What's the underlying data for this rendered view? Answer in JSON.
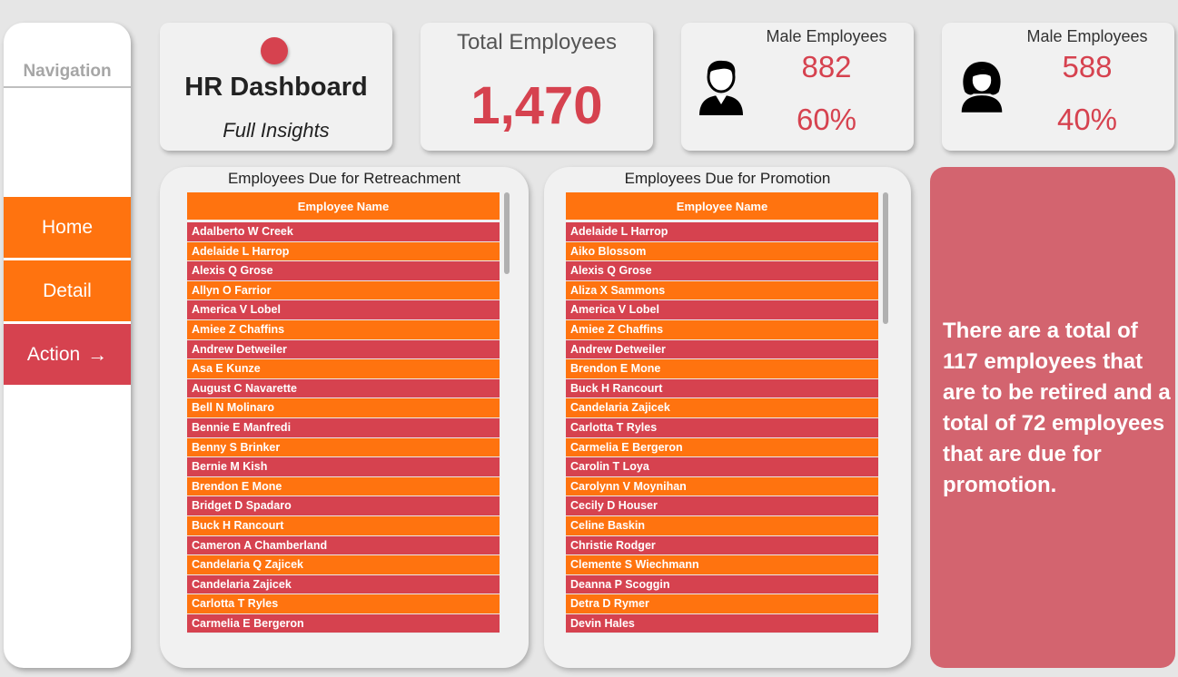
{
  "navigation": {
    "title": "Navigation",
    "items": [
      {
        "label": "Home",
        "arrow": ""
      },
      {
        "label": "Detail",
        "arrow": ""
      },
      {
        "label": "Action",
        "arrow": "→"
      }
    ]
  },
  "header": {
    "title": "HR Dashboard",
    "subtitle": "Full Insights"
  },
  "kpi_total": {
    "label": "Total Employees",
    "value": "1,470"
  },
  "kpi_male": {
    "label": "Male Employees",
    "count": "882",
    "percent": "60%"
  },
  "kpi_female": {
    "label": "Male Employees",
    "count": "588",
    "percent": "40%"
  },
  "retrenchment": {
    "title": "Employees Due for Retreachment",
    "column": "Employee Name",
    "rows": [
      "Adalberto W Creek",
      "Adelaide L Harrop",
      "Alexis Q Grose",
      "Allyn O Farrior",
      "America V Lobel",
      "Amiee Z Chaffins",
      "Andrew Detweiler",
      "Asa E Kunze",
      "August C Navarette",
      "Bell N Molinaro",
      "Bennie E Manfredi",
      "Benny S Brinker",
      "Bernie M Kish",
      "Brendon E Mone",
      "Bridget D Spadaro",
      "Buck H Rancourt",
      "Cameron A Chamberland",
      "Candelaria Q Zajicek",
      "Candelaria Zajicek",
      "Carlotta T Ryles",
      "Carmelia E Bergeron"
    ]
  },
  "promotion": {
    "title": "Employees Due for Promotion",
    "column": "Employee Name",
    "rows": [
      "Adelaide L Harrop",
      "Aiko Blossom",
      "Alexis Q Grose",
      "Aliza X Sammons",
      "America V Lobel",
      "Amiee Z Chaffins",
      "Andrew Detweiler",
      "Brendon E Mone",
      "Buck H Rancourt",
      "Candelaria Zajicek",
      "Carlotta T Ryles",
      "Carmelia E Bergeron",
      "Carolin T Loya",
      "Carolynn V Moynihan",
      "Cecily D Houser",
      "Celine Baskin",
      "Christie Rodger",
      "Clemente S Wiechmann",
      "Deanna P Scoggin",
      "Detra D Rymer",
      "Devin Hales"
    ]
  },
  "insight": {
    "text": "There are a total of 117 employees that are to be retired and a total of 72 employees that are due for promotion."
  },
  "colors": {
    "accent_red": "#d6424f",
    "accent_orange": "#ff730f",
    "insight_bg": "#d3646f"
  },
  "icons": {
    "male": "male-user-icon",
    "female": "female-user-icon",
    "action_arrow": "arrow-right-icon"
  }
}
